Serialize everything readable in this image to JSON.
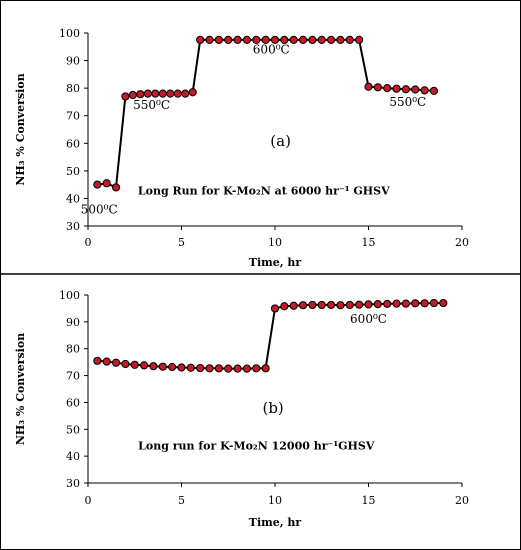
{
  "chart_data": [
    {
      "type": "line",
      "panel_label": "(a)",
      "annotation_text": "Long Run for K-Mo₂N at 6000 hr⁻¹ GHSV",
      "xlabel": "Time, hr",
      "ylabel": "NH₃ % Conversion",
      "xlim": [
        0,
        20
      ],
      "ylim": [
        30,
        100
      ],
      "xticks": [
        "0",
        "5",
        "10",
        "15",
        "20"
      ],
      "yticks": [
        "30",
        "40",
        "50",
        "60",
        "70",
        "80",
        "90",
        "100"
      ],
      "marker_color": "#c21b24",
      "marker_edge": "#000000",
      "line_color": "#000000",
      "temperature_labels": [
        {
          "text": "500⁰C",
          "x": 0.6,
          "y": 34.5
        },
        {
          "text": "550⁰C",
          "x": 3.4,
          "y": 72.5
        },
        {
          "text": "600⁰C",
          "x": 9.8,
          "y": 92.5
        },
        {
          "text": "550⁰C",
          "x": 17.1,
          "y": 73.5
        }
      ],
      "series": [
        {
          "x": [
            0.5,
            1.0,
            1.5,
            2.0,
            2.4,
            2.8,
            3.2,
            3.6,
            4.0,
            4.4,
            4.8,
            5.2,
            5.6,
            6.0,
            6.5,
            7.0,
            7.5,
            8.0,
            8.5,
            9.0,
            9.5,
            10.0,
            10.5,
            11.0,
            11.5,
            12.0,
            12.5,
            13.0,
            13.5,
            14.0,
            14.5,
            15.0,
            15.5,
            16.0,
            16.5,
            17.0,
            17.5,
            18.0,
            18.5
          ],
          "y": [
            45,
            45.5,
            44,
            77,
            77.5,
            77.8,
            78,
            78,
            78,
            78,
            78,
            78,
            78.5,
            97.5,
            97.5,
            97.5,
            97.5,
            97.5,
            97.5,
            97.5,
            97.5,
            97.5,
            97.5,
            97.5,
            97.5,
            97.5,
            97.5,
            97.5,
            97.5,
            97.5,
            97.5,
            80.5,
            80.3,
            80,
            79.8,
            79.6,
            79.5,
            79.2,
            79
          ]
        }
      ]
    },
    {
      "type": "line",
      "panel_label": "(b)",
      "annotation_text": "Long run for K-Mo₂N 12000 hr⁻¹GHSV",
      "xlabel": "Time, hr",
      "ylabel": "NH₃ % Conversion",
      "xlim": [
        0,
        20
      ],
      "ylim": [
        30,
        100
      ],
      "xticks": [
        "0",
        "5",
        "10",
        "15",
        "20"
      ],
      "yticks": [
        "30",
        "40",
        "50",
        "60",
        "70",
        "80",
        "90",
        "100"
      ],
      "marker_color": "#c21b24",
      "marker_edge": "#000000",
      "line_color": "#000000",
      "temperature_labels": [
        {
          "text": "600⁰C",
          "x": 15.0,
          "y": 89.5
        }
      ],
      "series": [
        {
          "x": [
            0.5,
            1.0,
            1.5,
            2.0,
            2.5,
            3.0,
            3.5,
            4.0,
            4.5,
            5.0,
            5.5,
            6.0,
            6.5,
            7.0,
            7.5,
            8.0,
            8.5,
            9.0,
            9.5,
            10.0,
            10.5,
            11.0,
            11.5,
            12.0,
            12.5,
            13.0,
            13.5,
            14.0,
            14.5,
            15.0,
            15.5,
            16.0,
            16.5,
            17.0,
            17.5,
            18.0,
            18.5,
            19.0
          ],
          "y": [
            75.5,
            75.2,
            74.8,
            74.3,
            74.0,
            73.8,
            73.5,
            73.3,
            73.2,
            73.0,
            72.9,
            72.8,
            72.7,
            72.7,
            72.6,
            72.6,
            72.6,
            72.7,
            72.7,
            95.0,
            95.8,
            96.0,
            96.2,
            96.3,
            96.3,
            96.3,
            96.2,
            96.3,
            96.4,
            96.5,
            96.6,
            96.7,
            96.8,
            96.8,
            96.9,
            96.9,
            97.0,
            97.0
          ]
        }
      ]
    }
  ]
}
